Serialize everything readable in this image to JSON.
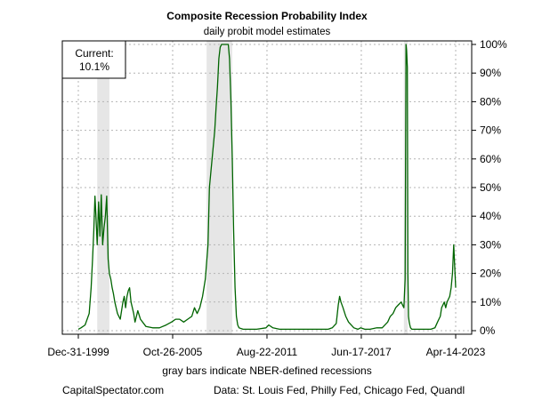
{
  "title": "Composite Recession Probability Index",
  "subtitle": "daily probit model estimates",
  "x_caption": "gray bars indicate NBER-defined recessions",
  "source_left": "CapitalSpectator.com",
  "source_right": "Data: St. Louis Fed, Philly Fed, Chicago Fed, Quandl",
  "current_box": {
    "line1": "Current:",
    "line2": "10.1%"
  },
  "colors": {
    "line": "#006400",
    "recession": "#e6e6e6",
    "grid": "#b4b4b4",
    "frame": "#000000"
  },
  "chart_data": {
    "type": "line",
    "title": "Composite Recession Probability Index",
    "subtitle": "daily probit model estimates",
    "xlabel": "gray bars indicate NBER-defined recessions",
    "ylabel": "",
    "x_range": [
      "1999-12-31",
      "2023-04-14"
    ],
    "ylim": [
      0,
      100
    ],
    "y_ticks": [
      0,
      10,
      20,
      30,
      40,
      50,
      60,
      70,
      80,
      90,
      100
    ],
    "y_tick_labels": [
      "0%",
      "10%",
      "20%",
      "30%",
      "40%",
      "50%",
      "60%",
      "70%",
      "80%",
      "90%",
      "100%"
    ],
    "x_ticks": [
      "1999-12-31",
      "2005-10-26",
      "2011-08-22",
      "2017-06-17",
      "2023-04-14"
    ],
    "x_tick_labels": [
      "Dec-31-1999",
      "Oct-26-2005",
      "Aug-22-2011",
      "Jun-17-2017",
      "Apr-14-2023"
    ],
    "grid": true,
    "recessions": [
      {
        "start": "2001-03-01",
        "end": "2001-11-30"
      },
      {
        "start": "2007-12-01",
        "end": "2009-06-30"
      },
      {
        "start": "2020-02-01",
        "end": "2020-04-30"
      }
    ],
    "series": [
      {
        "values_x": [
          "1999-12-31",
          "2000-03-01",
          "2000-06-01",
          "2000-09-01",
          "2000-10-15",
          "2000-11-15",
          "2000-12-15",
          "2001-01-10",
          "2001-02-01",
          "2001-03-01",
          "2001-04-01",
          "2001-05-01",
          "2001-06-01",
          "2001-07-01",
          "2001-08-01",
          "2001-09-01",
          "2001-10-01",
          "2001-11-01",
          "2001-12-01",
          "2002-01-01",
          "2002-02-01",
          "2002-03-01",
          "2002-04-01",
          "2002-06-01",
          "2002-08-01",
          "2002-09-01",
          "2002-10-01",
          "2002-11-01",
          "2002-12-01",
          "2003-01-01",
          "2003-02-01",
          "2003-03-01",
          "2003-04-01",
          "2003-05-01",
          "2003-06-01",
          "2003-07-01",
          "2003-08-01",
          "2003-09-01",
          "2003-11-01",
          "2004-03-01",
          "2004-08-01",
          "2005-01-01",
          "2005-06-01",
          "2005-10-01",
          "2006-01-01",
          "2006-04-01",
          "2006-07-01",
          "2006-10-01",
          "2007-01-01",
          "2007-03-01",
          "2007-05-01",
          "2007-07-01",
          "2007-09-01",
          "2007-11-01",
          "2008-01-01",
          "2008-02-01",
          "2008-04-01",
          "2008-06-01",
          "2008-07-01",
          "2008-08-01",
          "2008-09-01",
          "2008-10-01",
          "2008-11-01",
          "2009-01-01",
          "2009-03-01",
          "2009-04-01",
          "2009-05-01",
          "2009-06-01",
          "2009-07-01",
          "2009-08-01",
          "2009-09-01",
          "2009-10-01",
          "2009-11-01",
          "2009-12-01",
          "2010-03-01",
          "2010-08-01",
          "2011-01-01",
          "2011-08-01",
          "2011-10-01",
          "2012-01-01",
          "2012-06-01",
          "2012-10-01",
          "2013-01-01",
          "2013-06-01",
          "2014-01-01",
          "2014-06-01",
          "2015-01-01",
          "2015-06-01",
          "2015-09-01",
          "2015-12-01",
          "2016-01-15",
          "2016-02-15",
          "2016-03-15",
          "2016-05-01",
          "2016-07-01",
          "2016-09-01",
          "2016-11-01",
          "2017-01-01",
          "2017-04-01",
          "2017-06-01",
          "2017-09-01",
          "2018-01-01",
          "2018-06-01",
          "2018-10-01",
          "2018-12-01",
          "2019-02-01",
          "2019-04-01",
          "2019-06-01",
          "2019-08-01",
          "2019-10-01",
          "2019-12-01",
          "2020-02-01",
          "2020-03-01",
          "2020-03-20",
          "2020-04-01",
          "2020-04-20",
          "2020-05-01",
          "2020-05-15",
          "2020-06-01",
          "2020-06-15",
          "2020-07-01",
          "2020-08-01",
          "2020-10-01",
          "2021-01-01",
          "2021-06-01",
          "2021-10-01",
          "2022-01-01",
          "2022-03-01",
          "2022-05-01",
          "2022-06-01",
          "2022-07-01",
          "2022-08-01",
          "2022-09-01",
          "2022-10-01",
          "2022-11-01",
          "2022-12-01",
          "2023-01-01",
          "2023-02-01",
          "2023-03-01",
          "2023-04-14"
        ],
        "values": [
          0.5,
          1.0,
          2.0,
          6.0,
          15.0,
          25.0,
          35.0,
          47.0,
          40.0,
          30.0,
          45.0,
          33.0,
          47.5,
          30.0,
          36.0,
          40.0,
          47.0,
          25.0,
          20.0,
          18.0,
          15.0,
          13.0,
          10.0,
          6.0,
          4.0,
          7.0,
          10.0,
          12.0,
          8.0,
          12.0,
          14.0,
          15.0,
          10.0,
          8.0,
          6.0,
          3.0,
          5.0,
          7.0,
          4.0,
          1.5,
          1.0,
          1.0,
          2.0,
          3.0,
          4.0,
          4.0,
          3.0,
          4.0,
          5.0,
          8.0,
          6.0,
          8.0,
          12.0,
          18.0,
          30.0,
          50.0,
          60.0,
          70.0,
          78.0,
          85.0,
          95.0,
          99.0,
          100.0,
          100.0,
          100.0,
          100.0,
          95.0,
          80.0,
          60.0,
          35.0,
          15.0,
          5.0,
          2.0,
          1.0,
          0.5,
          0.5,
          0.5,
          1.0,
          2.0,
          1.0,
          0.5,
          0.5,
          0.5,
          0.5,
          0.5,
          0.5,
          0.5,
          0.5,
          1.0,
          2.5,
          9.0,
          12.0,
          10.0,
          8.0,
          5.0,
          3.0,
          2.0,
          1.0,
          0.5,
          1.0,
          0.5,
          0.5,
          1.0,
          1.0,
          2.0,
          3.0,
          5.0,
          6.0,
          8.0,
          9.0,
          10.0,
          8.0,
          18.0,
          100.0,
          98.0,
          92.0,
          20.0,
          5.0,
          3.0,
          2.0,
          1.0,
          0.5,
          0.5,
          0.5,
          0.5,
          0.5,
          1.0,
          3.0,
          5.0,
          8.0,
          9.0,
          10.0,
          8.0,
          10.0,
          11.0,
          12.0,
          15.0,
          20.0,
          30.0,
          15.0,
          10.1
        ]
      }
    ]
  }
}
